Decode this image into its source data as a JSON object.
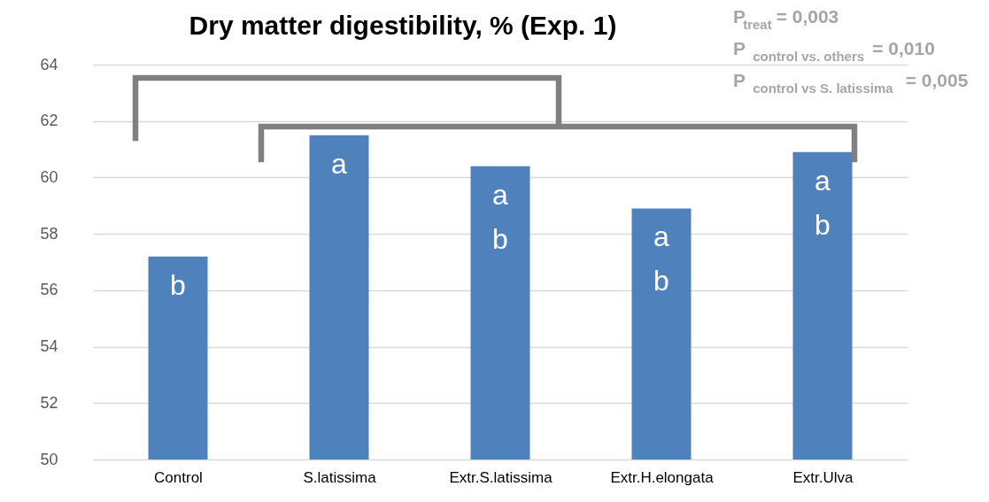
{
  "chart_data": {
    "type": "bar",
    "title": "Dry matter digestibility, % (Exp. 1)",
    "categories": [
      "Control",
      "S.latissima",
      "Extr.S.latissima",
      "Extr.H.elongata",
      "Extr.Ulva"
    ],
    "values": [
      57.2,
      61.5,
      60.4,
      58.9,
      60.9
    ],
    "color": "#4f81bd",
    "ylim": [
      50,
      64
    ],
    "yticks": [
      50,
      52,
      54,
      56,
      58,
      60,
      62,
      64
    ],
    "grid": "y",
    "annotations": [
      "P$_{treat}$ = 0,003",
      "P $_{control vs. others}$ = 0,010",
      "P $_{control vs S. latissima}$= 0,005"
    ],
    "value_labels": [
      "b",
      "a",
      "a\nb",
      "a\nb",
      "a\nb"
    ]
  }
}
